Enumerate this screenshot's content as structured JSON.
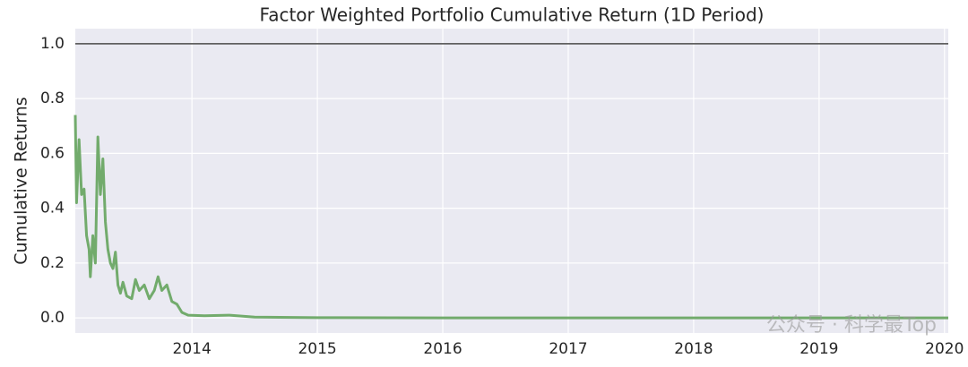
{
  "chart_data": {
    "type": "line",
    "title": "Factor Weighted Portfolio Cumulative Return (1D Period)",
    "y_label": "Cumulative Returns",
    "watermark": "公众号 · 科学最Top",
    "color": "#72ab6c",
    "hline": 1.0,
    "hline_color": "#4a4a4a",
    "x": [
      2013.07,
      2013.08,
      2013.1,
      2013.12,
      2013.14,
      2013.16,
      2013.18,
      2013.19,
      2013.21,
      2013.23,
      2013.25,
      2013.27,
      2013.29,
      2013.31,
      2013.33,
      2013.35,
      2013.37,
      2013.39,
      2013.41,
      2013.43,
      2013.45,
      2013.48,
      2013.52,
      2013.55,
      2013.58,
      2013.62,
      2013.66,
      2013.7,
      2013.73,
      2013.76,
      2013.8,
      2013.84,
      2013.88,
      2013.92,
      2013.97,
      2014.1,
      2014.3,
      2014.5,
      2015,
      2016,
      2017,
      2018,
      2019,
      2020.03
    ],
    "values": [
      0.74,
      0.42,
      0.65,
      0.45,
      0.47,
      0.3,
      0.25,
      0.15,
      0.3,
      0.2,
      0.66,
      0.45,
      0.58,
      0.35,
      0.25,
      0.2,
      0.18,
      0.24,
      0.12,
      0.09,
      0.13,
      0.08,
      0.07,
      0.14,
      0.1,
      0.12,
      0.07,
      0.1,
      0.15,
      0.1,
      0.12,
      0.06,
      0.05,
      0.02,
      0.01,
      0.008,
      0.01,
      0.003,
      0.001,
      0,
      0,
      0,
      0,
      0
    ],
    "xlim": [
      2013.07,
      2020.03
    ],
    "xticks": [
      2014,
      2015,
      2016,
      2017,
      2018,
      2019,
      2020
    ],
    "ylim": [
      -0.055,
      1.055
    ],
    "yticks": [
      {
        "value": 0,
        "label": "0.0"
      },
      0.2,
      0.4,
      0.6,
      0.8,
      {
        "value": 1,
        "label": "1.0"
      }
    ],
    "grid": true
  }
}
